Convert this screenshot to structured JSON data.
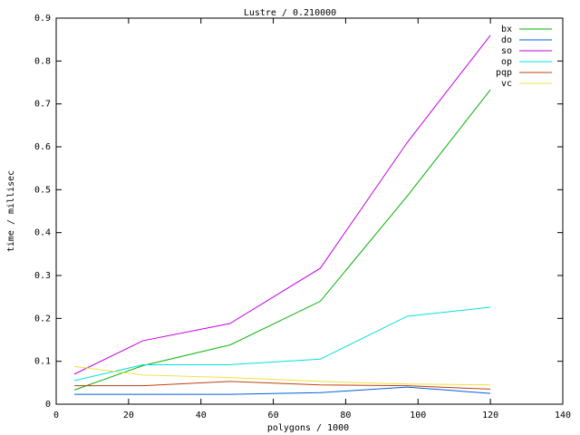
{
  "chart_data": {
    "type": "line",
    "title": "Lustre / 0.210000",
    "x_label": "polygons / 1000",
    "y_label": "time / millisec",
    "x": [
      5,
      24,
      48,
      73,
      97,
      120
    ],
    "series": [
      {
        "name": "bx",
        "color": "#00b000",
        "values": [
          0.033,
          0.09,
          0.138,
          0.24,
          0.485,
          0.733
        ]
      },
      {
        "name": "do",
        "color": "#0060e0",
        "values": [
          0.023,
          0.023,
          0.023,
          0.027,
          0.04,
          0.025
        ]
      },
      {
        "name": "so",
        "color": "#c000e0",
        "values": [
          0.07,
          0.148,
          0.188,
          0.317,
          0.61,
          0.86
        ]
      },
      {
        "name": "op",
        "color": "#00e0e0",
        "values": [
          0.055,
          0.092,
          0.092,
          0.105,
          0.205,
          0.226
        ]
      },
      {
        "name": "pqp",
        "color": "#c04010",
        "values": [
          0.043,
          0.043,
          0.053,
          0.045,
          0.043,
          0.035
        ]
      },
      {
        "name": "vc",
        "color": "#f0e040",
        "values": [
          0.088,
          0.068,
          0.062,
          0.053,
          0.047,
          0.045
        ]
      }
    ],
    "xlim": [
      0,
      140
    ],
    "xticks": [
      0,
      20,
      40,
      60,
      80,
      100,
      120,
      140
    ],
    "ylim": [
      0,
      0.9
    ],
    "yticks": [
      0,
      0.1,
      0.2,
      0.3,
      0.4,
      0.5,
      0.6,
      0.7,
      0.8,
      0.9
    ],
    "legend": "top-right",
    "grid": false
  }
}
